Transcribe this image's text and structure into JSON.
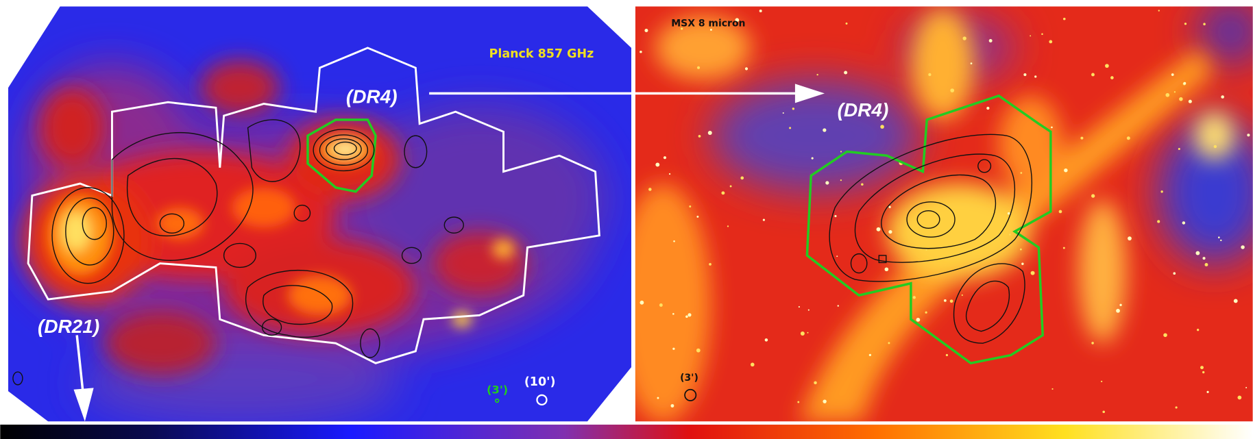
{
  "left_panel": {
    "title": "Planck 857 GHz",
    "labels": [
      "(DR4)",
      "(DR21)"
    ],
    "beams": [
      "(3')",
      "(10')"
    ]
  },
  "right_panel": {
    "title": "MSX 8 micron",
    "labels": [
      "(DR4)"
    ],
    "beams": [
      "(3')"
    ]
  }
}
